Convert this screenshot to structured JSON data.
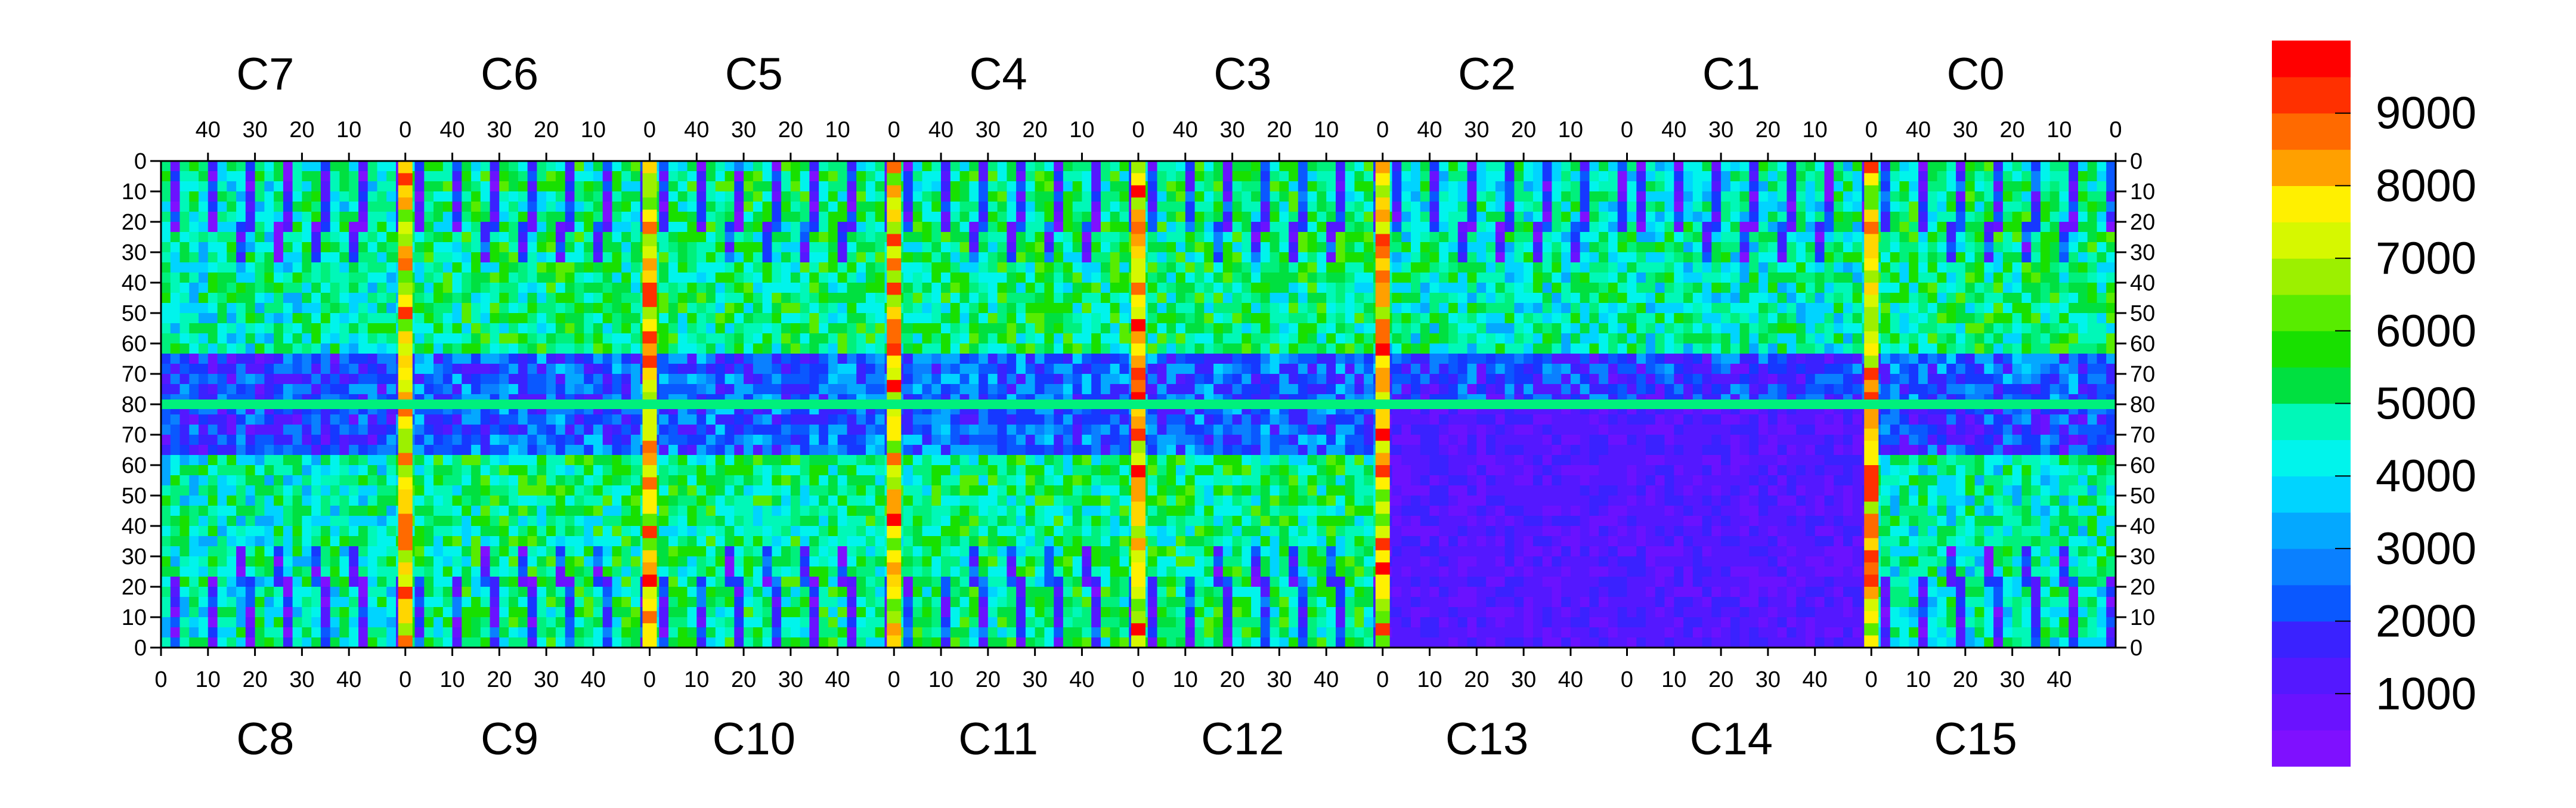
{
  "chart_data": {
    "type": "heatmap",
    "title": "",
    "top_chip_labels": [
      "C7",
      "C6",
      "C5",
      "C4",
      "C3",
      "C2",
      "C1",
      "C0"
    ],
    "bottom_chip_labels": [
      "C8",
      "C9",
      "C10",
      "C11",
      "C12",
      "C13",
      "C14",
      "C15"
    ],
    "top_x_ticks": [
      "40",
      "30",
      "20",
      "10",
      "0"
    ],
    "bottom_x_ticks": [
      "0",
      "10",
      "20",
      "30",
      "40"
    ],
    "top_row_ticks": [
      "0",
      "10",
      "20",
      "30",
      "40",
      "50",
      "60",
      "70",
      "80"
    ],
    "bottom_row_ticks": [
      "70",
      "60",
      "50",
      "40",
      "30",
      "20",
      "10",
      "0"
    ],
    "columns_per_chip": 52,
    "rows_per_half": 80,
    "zrange": [
      0,
      10000
    ],
    "colorbar_ticks": [
      "1000",
      "2000",
      "3000",
      "4000",
      "5000",
      "6000",
      "7000",
      "8000",
      "9000"
    ],
    "colorbar_levels": 20,
    "palette": [
      "#7f10ff",
      "#6a12ff",
      "#5418ff",
      "#3a22ff",
      "#1638ff",
      "#0a58ff",
      "#0a80ff",
      "#04a8ff",
      "#00d4ff",
      "#00f4ec",
      "#00f8b8",
      "#00f07c",
      "#00e040",
      "#18e000",
      "#58ec00",
      "#9cf000",
      "#d6f800",
      "#fff000",
      "#ffd600",
      "#ffa000",
      "#ff6a00",
      "#ff3000",
      "#ff0000"
    ],
    "chip_mean_levels": {
      "C0": 11,
      "C1": 10,
      "C2": 10,
      "C3": 11,
      "C4": 11,
      "C5": 11,
      "C6": 11,
      "C7": 10,
      "C8": 10,
      "C9": 11,
      "C10": 11,
      "C11": 11,
      "C12": 11,
      "C13": 2,
      "C14": 2,
      "C15": 10
    }
  }
}
